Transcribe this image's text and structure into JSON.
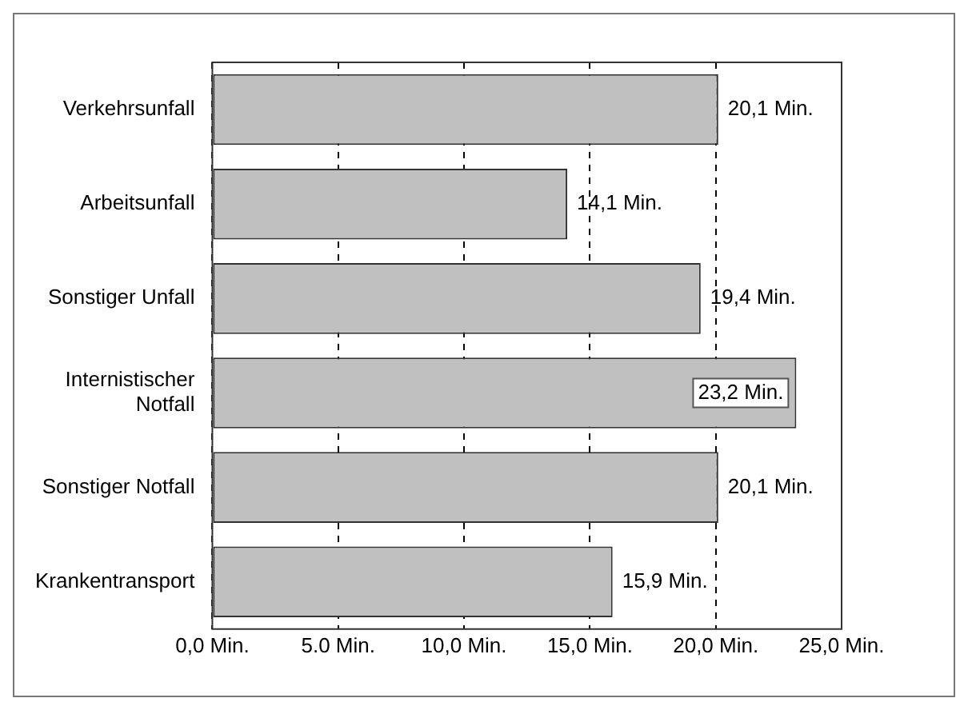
{
  "chart_data": {
    "type": "bar",
    "orientation": "horizontal",
    "categories": [
      "Verkehrsunfall",
      "Arbeitsunfall",
      "Sonstiger Unfall",
      "Internistischer Notfall",
      "Sonstiger Notfall",
      "Krankentransport"
    ],
    "values": [
      20.1,
      14.1,
      19.4,
      23.2,
      20.1,
      15.9
    ],
    "value_labels": [
      "20,1 Min.",
      "14,1 Min.",
      "19,4 Min.",
      "23,2 Min.",
      "20,1 Min.",
      "15,9 Min."
    ],
    "color": "#c0c0c0",
    "xlim": [
      0,
      25
    ],
    "xticks": [
      {
        "value": 0,
        "label": "0,0 Min."
      },
      {
        "value": 5,
        "label": "5.0 Min."
      },
      {
        "value": 10,
        "label": "10,0 Min."
      },
      {
        "value": 15,
        "label": "15,0 Min."
      },
      {
        "value": 20,
        "label": "20,0 Min."
      },
      {
        "value": 25,
        "label": "25,0 Min."
      }
    ],
    "grid": "x",
    "legend": false
  }
}
